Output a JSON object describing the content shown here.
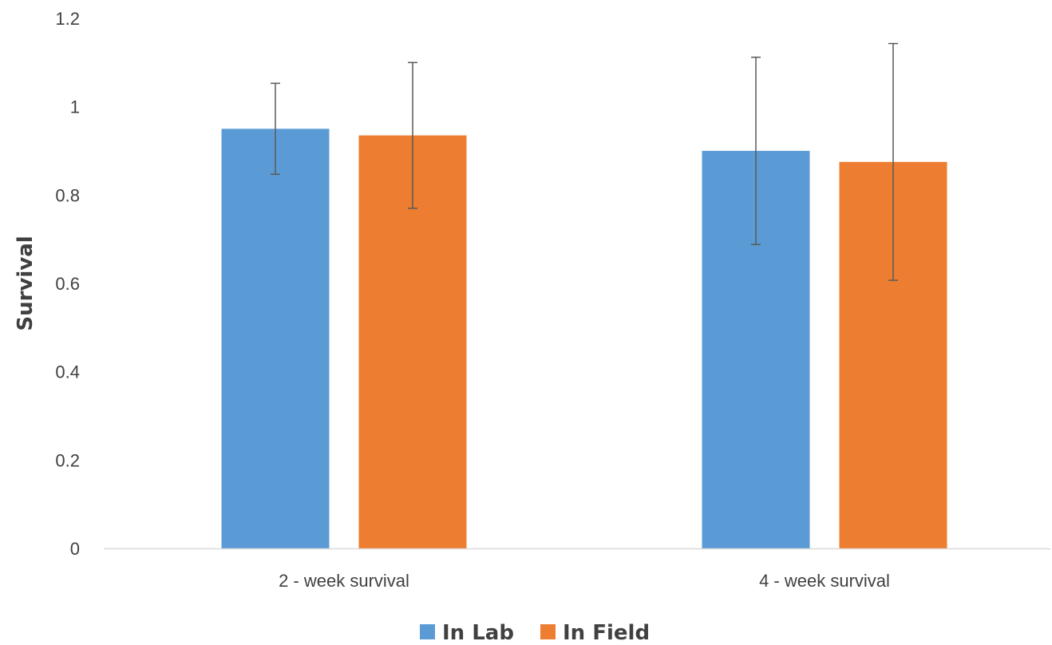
{
  "chart_data": {
    "type": "bar",
    "title": "",
    "xlabel": "",
    "ylabel": "Survival",
    "ylim": [
      0,
      1.2
    ],
    "yticks": [
      "0",
      "0.2",
      "0.4",
      "0.6",
      "0.8",
      "1",
      "1.2"
    ],
    "categories": [
      "2 - week survival",
      "4 - week survival"
    ],
    "series": [
      {
        "name": "In Lab",
        "color": "#5B9BD5",
        "values": [
          0.95,
          0.9
        ],
        "error": [
          0.103,
          0.212
        ]
      },
      {
        "name": "In Field",
        "color": "#ED7D31",
        "values": [
          0.935,
          0.875
        ],
        "error": [
          0.165,
          0.268
        ]
      }
    ],
    "grid": false,
    "legend": "bottom",
    "error_bar_color": "#595959",
    "axis_color": "#D9D9D9"
  }
}
